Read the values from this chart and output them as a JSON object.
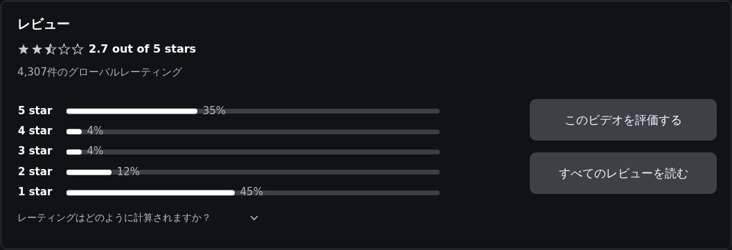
{
  "chart_data": {
    "type": "bar",
    "orientation": "horizontal",
    "title": "レビュー",
    "subtitle": "2.7 out of 5 stars",
    "categories": [
      "5 star",
      "4 star",
      "3 star",
      "2 star",
      "1 star"
    ],
    "values": [
      35,
      4,
      4,
      12,
      45
    ],
    "value_labels": [
      "35%",
      "4%",
      "4%",
      "12%",
      "45%"
    ],
    "color": "#ffffff",
    "tick_labels": "y",
    "annotations": [
      "4,307件のグローバルレーティング",
      "レーティングはどのように計算されますか？",
      "このビデオを評価する",
      "すべてのレビューを読む"
    ]
  }
}
